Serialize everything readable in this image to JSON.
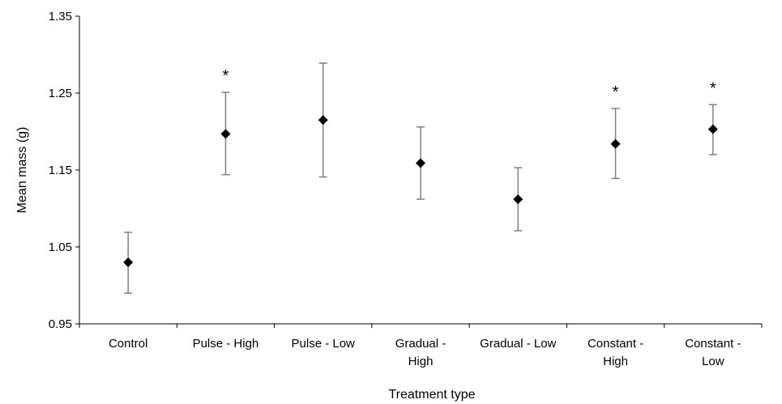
{
  "chart_data": {
    "type": "scatter",
    "xlabel": "Treatment type",
    "ylabel": "Mean mass (g)",
    "ylim": [
      0.95,
      1.35
    ],
    "yticks": [
      "0.95",
      "1.05",
      "1.15",
      "1.25",
      "1.35"
    ],
    "grid": false,
    "legend": "none",
    "marker": "diamond",
    "marker_color": "#000000",
    "errorbar_color": "#808080",
    "categories": [
      [
        "Control"
      ],
      [
        "Pulse - High"
      ],
      [
        "Pulse - Low"
      ],
      [
        "Gradual -",
        "High"
      ],
      [
        "Gradual - Low"
      ],
      [
        "Constant -",
        "High"
      ],
      [
        "Constant -",
        "Low"
      ]
    ],
    "values": [
      1.03,
      1.197,
      1.215,
      1.159,
      1.112,
      1.184,
      1.203
    ],
    "error_upper": [
      1.069,
      1.251,
      1.289,
      1.206,
      1.153,
      1.23,
      1.235
    ],
    "error_lower": [
      0.99,
      1.144,
      1.141,
      1.112,
      1.071,
      1.139,
      1.17
    ],
    "annotations": [
      "",
      "*",
      "",
      "",
      "",
      "*",
      "*"
    ]
  }
}
